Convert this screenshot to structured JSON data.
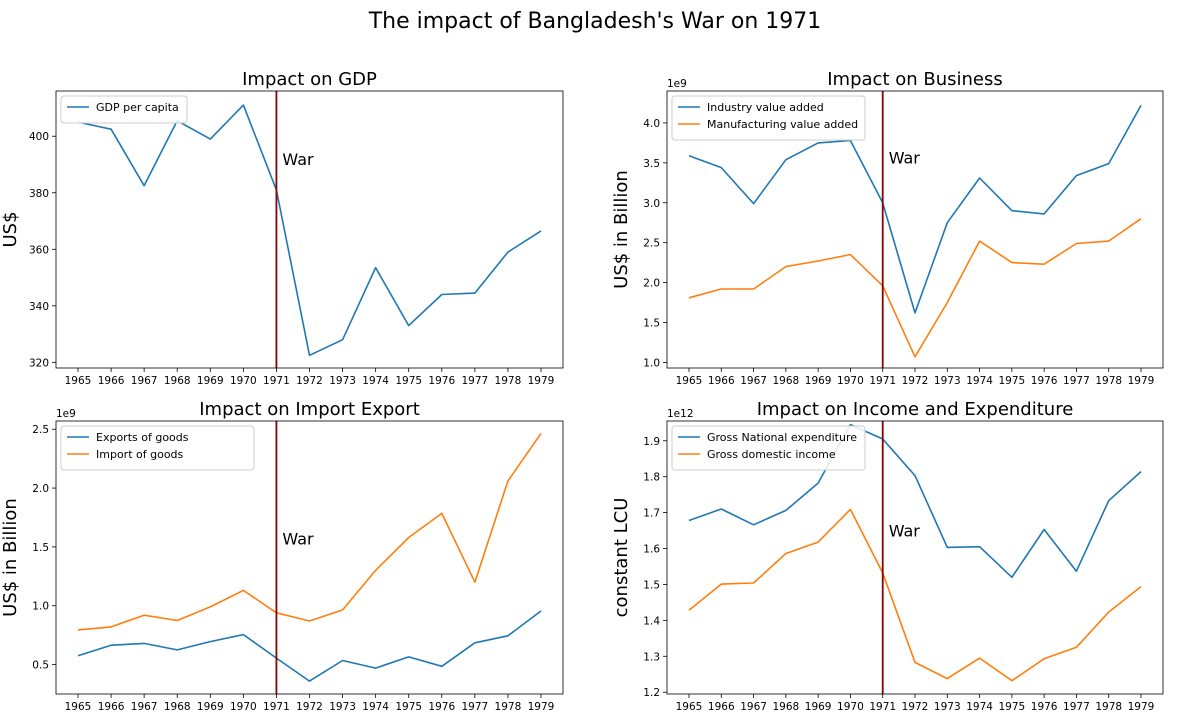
{
  "figure": {
    "title": "The impact of Bangladesh's War on 1971"
  },
  "colors": {
    "blue": "#1f77b4",
    "orange": "#ff7f0e",
    "war_line": "#8b0000"
  },
  "chart_data": [
    {
      "type": "line",
      "title": "Impact on GDP",
      "xlabel": "",
      "ylabel": "US$",
      "offset_label": "",
      "x": [
        1965,
        1966,
        1967,
        1968,
        1969,
        1970,
        1971,
        1972,
        1973,
        1974,
        1975,
        1976,
        1977,
        1978,
        1979
      ],
      "yticks": [
        320,
        340,
        360,
        380,
        400
      ],
      "ylim": [
        318,
        416
      ],
      "series": [
        {
          "name": "GDP per capita",
          "color": "#1f77b4",
          "values": [
            405,
            402.5,
            382.5,
            405.5,
            399,
            411,
            381,
            322.5,
            328,
            353.5,
            333,
            344,
            344.5,
            359,
            366.5
          ]
        }
      ],
      "annotation": {
        "x": 1971,
        "text": "War",
        "y": 392
      },
      "legend": "upper-left"
    },
    {
      "type": "line",
      "title": "Impact on Business",
      "xlabel": "",
      "ylabel": "US$ in Billion",
      "offset_label": "1e9",
      "x": [
        1965,
        1966,
        1967,
        1968,
        1969,
        1970,
        1971,
        1972,
        1973,
        1974,
        1975,
        1976,
        1977,
        1978,
        1979
      ],
      "yticks": [
        1.0,
        1.5,
        2.0,
        2.5,
        3.0,
        3.5,
        4.0
      ],
      "ylim": [
        0.93,
        4.4
      ],
      "series": [
        {
          "name": "Industry value added",
          "color": "#1f77b4",
          "values": [
            3.59,
            3.44,
            2.99,
            3.54,
            3.75,
            3.78,
            3.0,
            1.62,
            2.75,
            3.31,
            2.9,
            2.86,
            3.34,
            3.49,
            4.22
          ]
        },
        {
          "name": "Manufacturing value added",
          "color": "#ff7f0e",
          "values": [
            1.81,
            1.92,
            1.92,
            2.2,
            2.27,
            2.35,
            1.96,
            1.07,
            1.75,
            2.52,
            2.25,
            2.23,
            2.49,
            2.52,
            2.8
          ]
        }
      ],
      "annotation": {
        "x": 1971,
        "text": "War",
        "y": 3.57
      },
      "legend": "upper-left"
    },
    {
      "type": "line",
      "title": "Impact on Import Export",
      "xlabel": "",
      "ylabel": "US$ in Billion",
      "offset_label": "1e9",
      "x": [
        1965,
        1966,
        1967,
        1968,
        1969,
        1970,
        1971,
        1972,
        1973,
        1974,
        1975,
        1976,
        1977,
        1978,
        1979
      ],
      "yticks": [
        0.5,
        1.0,
        1.5,
        2.0,
        2.5
      ],
      "ylim": [
        0.25,
        2.57
      ],
      "series": [
        {
          "name": "Exports of goods",
          "color": "#1f77b4",
          "values": [
            0.575,
            0.665,
            0.68,
            0.625,
            0.695,
            0.755,
            0.555,
            0.36,
            0.535,
            0.47,
            0.565,
            0.485,
            0.685,
            0.745,
            0.955
          ]
        },
        {
          "name": "Import of goods",
          "color": "#ff7f0e",
          "values": [
            0.795,
            0.82,
            0.92,
            0.875,
            0.99,
            1.13,
            0.94,
            0.87,
            0.965,
            1.3,
            1.58,
            1.785,
            1.2,
            2.06,
            2.465
          ]
        }
      ],
      "annotation": {
        "x": 1971,
        "text": "War",
        "y": 1.57
      },
      "legend": "upper-left"
    },
    {
      "type": "line",
      "title": "Impact on Income and Expenditure",
      "xlabel": "",
      "ylabel": "constant LCU",
      "offset_label": "1e12",
      "x": [
        1965,
        1966,
        1967,
        1968,
        1969,
        1970,
        1971,
        1972,
        1973,
        1974,
        1975,
        1976,
        1977,
        1978,
        1979
      ],
      "yticks": [
        1.2,
        1.3,
        1.4,
        1.5,
        1.6,
        1.7,
        1.8,
        1.9
      ],
      "ylim": [
        1.195,
        1.955
      ],
      "series": [
        {
          "name": "Gross National expenditure",
          "color": "#1f77b4",
          "values": [
            1.678,
            1.71,
            1.666,
            1.706,
            1.782,
            1.945,
            1.905,
            1.803,
            1.603,
            1.605,
            1.52,
            1.653,
            1.537,
            1.733,
            1.814
          ]
        },
        {
          "name": "Gross domestic income",
          "color": "#ff7f0e",
          "values": [
            1.428,
            1.501,
            1.504,
            1.586,
            1.618,
            1.709,
            1.532,
            1.283,
            1.238,
            1.295,
            1.232,
            1.293,
            1.325,
            1.423,
            1.494
          ]
        }
      ],
      "annotation": {
        "x": 1971,
        "text": "War",
        "y": 1.65
      },
      "legend": "upper-left"
    }
  ]
}
